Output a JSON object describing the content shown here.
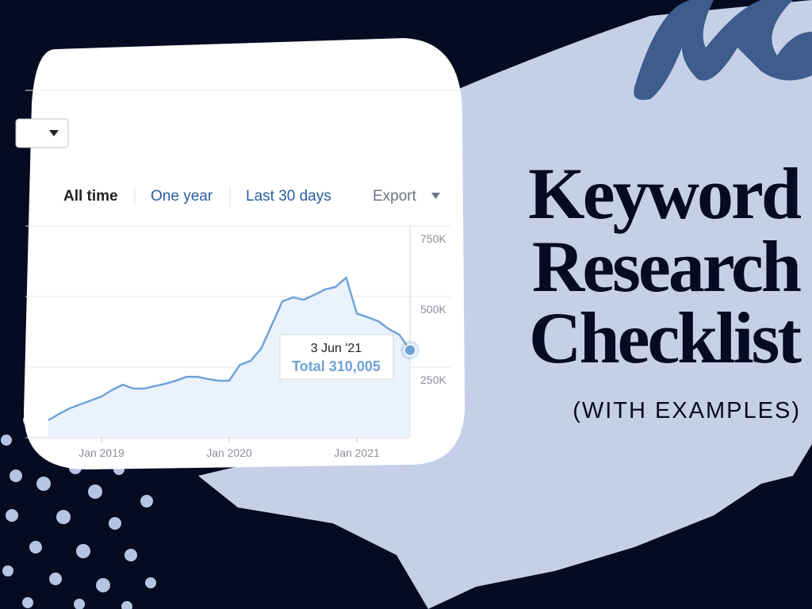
{
  "chart_data": {
    "type": "line",
    "x": [
      "2018-08",
      "2018-09",
      "2018-10",
      "2018-11",
      "2018-12",
      "2019-01",
      "2019-02",
      "2019-03",
      "2019-04",
      "2019-05",
      "2019-06",
      "2019-07",
      "2019-08",
      "2019-09",
      "2019-10",
      "2019-11",
      "2019-12",
      "2020-01",
      "2020-02",
      "2020-03",
      "2020-04",
      "2020-05",
      "2020-06",
      "2020-07",
      "2020-08",
      "2020-09",
      "2020-10",
      "2020-11",
      "2020-12",
      "2021-01",
      "2021-02",
      "2021-03",
      "2021-04",
      "2021-05",
      "2021-06"
    ],
    "series": [
      {
        "color": "#6fa3d8",
        "values": [
          62000,
          84000,
          104000,
          118000,
          132000,
          146000,
          169000,
          188000,
          174000,
          174000,
          183000,
          191000,
          202000,
          216000,
          216000,
          208000,
          202000,
          202000,
          258000,
          272000,
          315000,
          399000,
          483000,
          497000,
          489000,
          506000,
          525000,
          534000,
          567000,
          440000,
          427000,
          413000,
          385000,
          365000,
          310005
        ]
      }
    ],
    "ylim": [
      0,
      750000
    ],
    "yticks": [
      {
        "value": 250000,
        "label": "250K"
      },
      {
        "value": 500000,
        "label": "500K"
      },
      {
        "value": 750000,
        "label": "750K"
      }
    ],
    "xticks": [
      {
        "value": "2019-01",
        "label": "Jan 2019"
      },
      {
        "value": "2020-01",
        "label": "Jan 2020"
      },
      {
        "value": "2021-01",
        "label": "Jan 2021"
      }
    ],
    "grid": true,
    "tooltip": {
      "date": "3 Jun '21",
      "total": "Total 310,005"
    }
  },
  "tabs": [
    "All time",
    "One year",
    "Last 30 days",
    "Export"
  ],
  "title": [
    "Keyword",
    "Research",
    "Checklist"
  ],
  "subtitle": "(WITH EXAMPLES)"
}
